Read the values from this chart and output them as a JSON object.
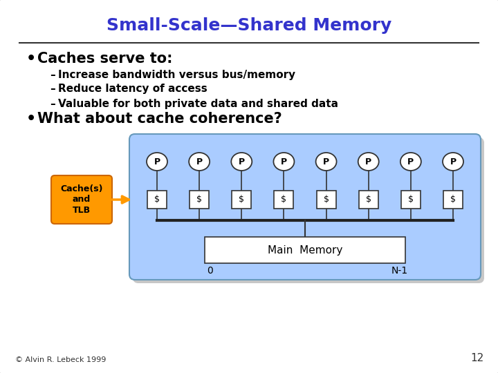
{
  "title": "Small-Scale—Shared Memory",
  "title_color": "#3333CC",
  "slide_bg": "#FFFFFF",
  "bullet1": "Caches serve to:",
  "sub1": "Increase bandwidth versus bus/memory",
  "sub2": "Reduce latency of access",
  "sub3": "Valuable for both private data and shared data",
  "bullet2": "What about cache coherence?",
  "cache_label": "Cache(s)\nand\nTLB",
  "cache_box_color": "#FF9900",
  "cache_box_edge": "#CC6600",
  "diagram_bg": "#AACCFF",
  "diagram_edge": "#6699BB",
  "processor_label": "P",
  "cache_unit_label": "$",
  "memory_label": "Main  Memory",
  "label_0": "0",
  "label_n1": "N-1",
  "num_processors": 8,
  "footer": "© Alvin R. Lebeck 1999",
  "page_num": "12",
  "title_fontsize": 18,
  "bullet_fontsize": 15,
  "sub_fontsize": 11
}
